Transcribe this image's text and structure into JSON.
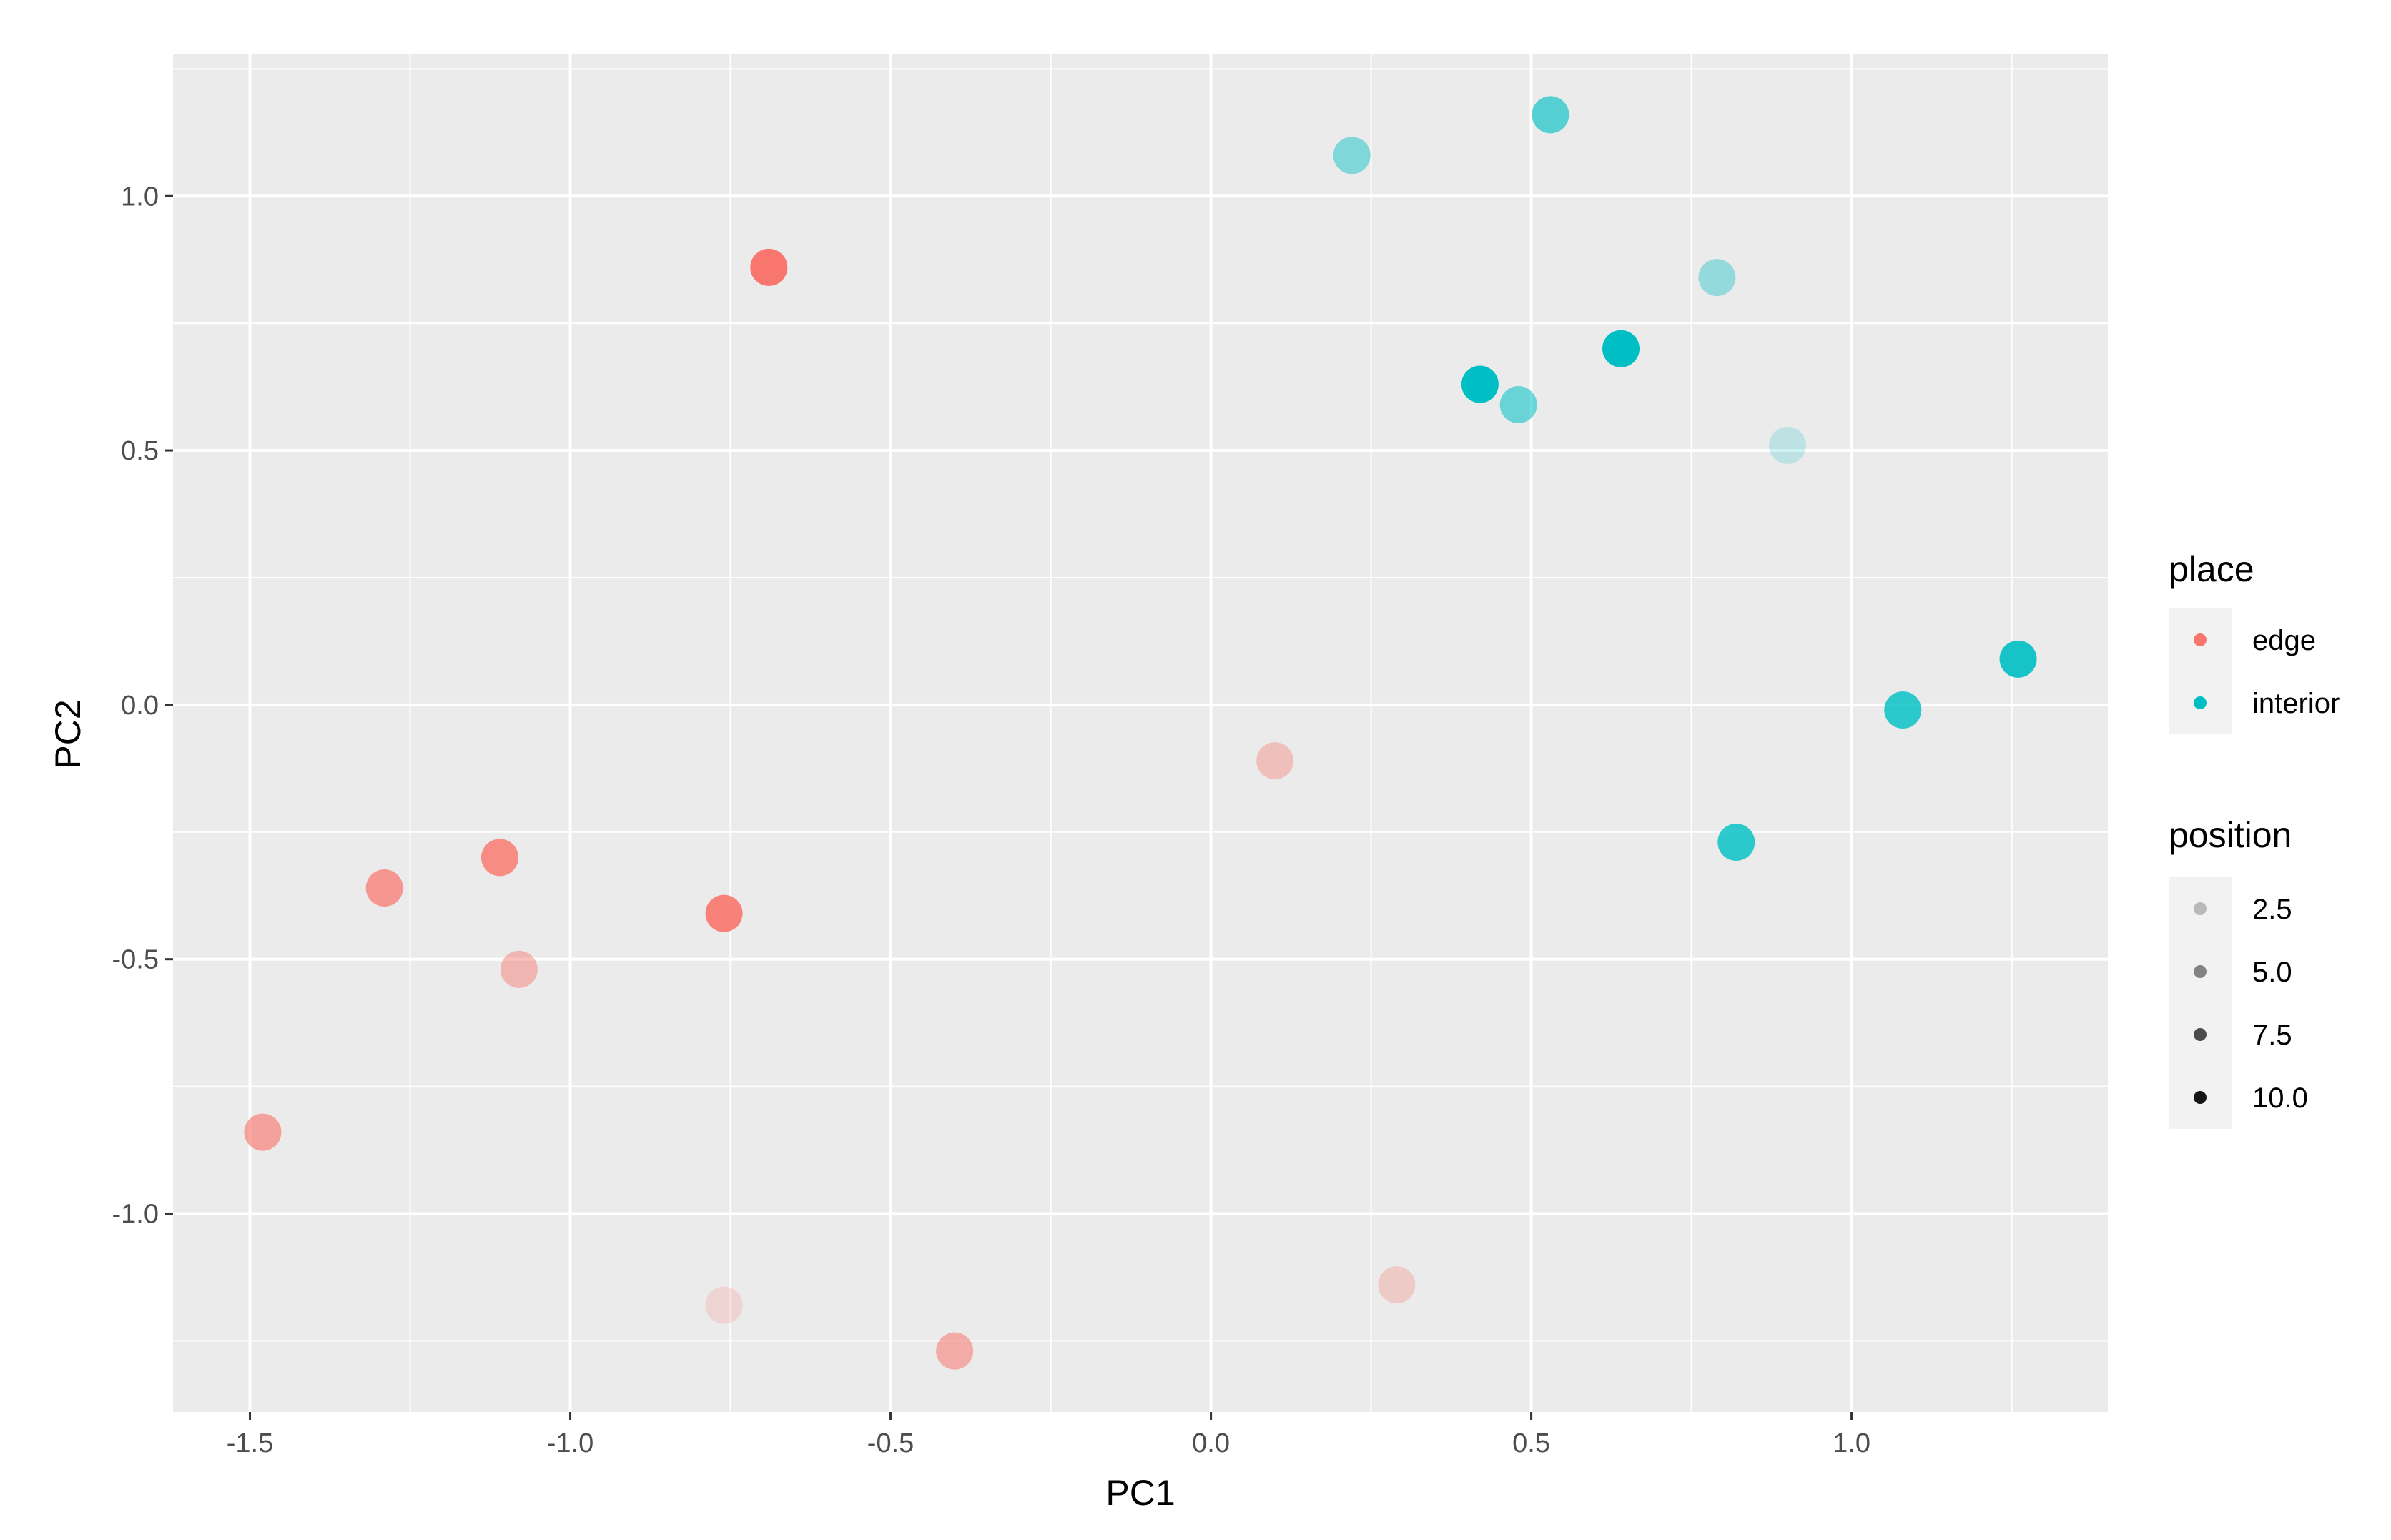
{
  "chart_data": {
    "type": "scatter",
    "xlabel": "PC1",
    "ylabel": "PC2",
    "xlim": [
      -1.62,
      1.4
    ],
    "ylim": [
      -1.39,
      1.28
    ],
    "x_ticks": [
      {
        "value": -1.5,
        "label": "-1.5"
      },
      {
        "value": -1.0,
        "label": "-1.0"
      },
      {
        "value": -0.5,
        "label": "-0.5"
      },
      {
        "value": 0.0,
        "label": "0.0"
      },
      {
        "value": 0.5,
        "label": "0.5"
      },
      {
        "value": 1.0,
        "label": "1.0"
      }
    ],
    "y_ticks": [
      {
        "value": -1.0,
        "label": "-1.0"
      },
      {
        "value": -0.5,
        "label": "-0.5"
      },
      {
        "value": 0.0,
        "label": "0.0"
      },
      {
        "value": 0.5,
        "label": "0.5"
      },
      {
        "value": 1.0,
        "label": "1.0"
      }
    ],
    "x_minor": [
      -1.25,
      -0.75,
      -0.25,
      0.25,
      0.75,
      1.25
    ],
    "y_minor": [
      -1.25,
      -0.75,
      -0.25,
      0.25,
      0.75,
      1.25
    ],
    "grid": true,
    "legend_position": "right",
    "colors": {
      "edge": "#F8766D",
      "interior": "#00BFC4"
    },
    "alpha_range": [
      0.1,
      1.0
    ],
    "position_range": [
      1,
      11
    ],
    "series": [
      {
        "name": "edge",
        "points": [
          {
            "x": -0.69,
            "y": 0.86,
            "position": 11
          },
          {
            "x": -1.29,
            "y": -0.36,
            "position": 8
          },
          {
            "x": -1.11,
            "y": -0.3,
            "position": 9
          },
          {
            "x": -0.76,
            "y": -0.41,
            "position": 10
          },
          {
            "x": -1.08,
            "y": -0.52,
            "position": 5
          },
          {
            "x": -1.48,
            "y": -0.84,
            "position": 7
          },
          {
            "x": -0.76,
            "y": -1.18,
            "position": 2
          },
          {
            "x": -0.4,
            "y": -1.27,
            "position": 6
          },
          {
            "x": 0.1,
            "y": -0.11,
            "position": 4
          },
          {
            "x": 0.29,
            "y": -1.14,
            "position": 3
          }
        ]
      },
      {
        "name": "interior",
        "points": [
          {
            "x": 0.53,
            "y": 1.16,
            "position": 7
          },
          {
            "x": 0.22,
            "y": 1.08,
            "position": 5
          },
          {
            "x": 0.79,
            "y": 0.84,
            "position": 4
          },
          {
            "x": 0.64,
            "y": 0.7,
            "position": 11
          },
          {
            "x": 0.42,
            "y": 0.63,
            "position": 11
          },
          {
            "x": 0.48,
            "y": 0.59,
            "position": 6
          },
          {
            "x": 0.9,
            "y": 0.51,
            "position": 2
          },
          {
            "x": 1.26,
            "y": 0.09,
            "position": 10
          },
          {
            "x": 1.08,
            "y": -0.01,
            "position": 9
          },
          {
            "x": 0.82,
            "y": -0.27,
            "position": 9
          }
        ]
      }
    ],
    "legends": {
      "place": {
        "title": "place",
        "labels": [
          "edge",
          "interior"
        ]
      },
      "position": {
        "title": "position",
        "items": [
          {
            "label": "2.5",
            "value": 2.5
          },
          {
            "label": "5.0",
            "value": 5.0
          },
          {
            "label": "7.5",
            "value": 7.5
          },
          {
            "label": "10.0",
            "value": 10.0
          }
        ]
      }
    }
  }
}
